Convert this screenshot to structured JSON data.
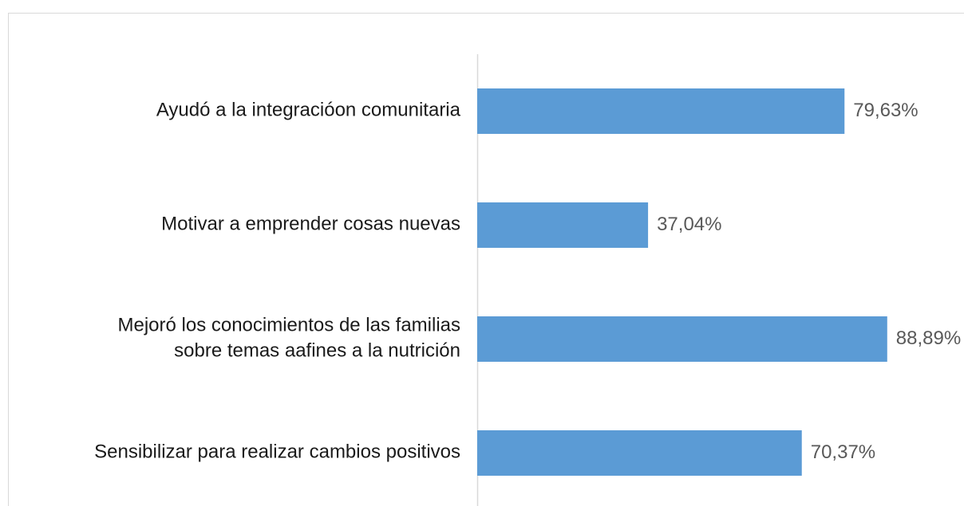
{
  "chart_data": {
    "type": "barh",
    "categories": [
      "Ayudó a la integracióon comunitaria",
      "Motivar a emprender cosas nuevas",
      "Mejoró los conocimientos de las familias\nsobre temas aafines a la nutrición",
      "Sensibilizar para realizar cambios positivos"
    ],
    "values": [
      79.63,
      37.04,
      88.89,
      70.37
    ],
    "value_labels": [
      "79,63%",
      "37,04%",
      "88,89%",
      "70,37%"
    ],
    "color": "#5b9bd5",
    "xlim": [
      0,
      100
    ]
  }
}
